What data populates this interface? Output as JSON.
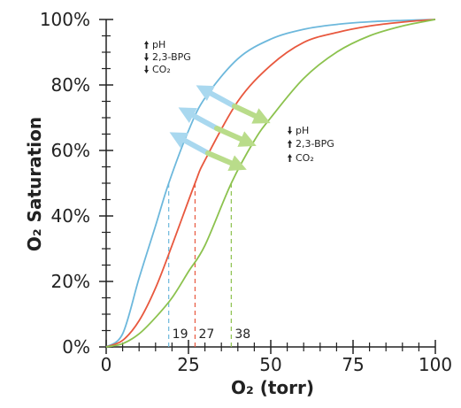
{
  "chart_data": {
    "type": "line",
    "xlabel": "O₂ (torr)",
    "ylabel": "O₂ Saturation",
    "xlim": [
      0,
      100
    ],
    "ylim": [
      0,
      100
    ],
    "x_ticks": [
      0,
      25,
      50,
      75,
      100
    ],
    "x_tick_labels": [
      "0",
      "25",
      "50",
      "75",
      "100"
    ],
    "y_ticks": [
      0,
      20,
      40,
      60,
      80,
      100
    ],
    "y_tick_labels": [
      "0%",
      "20%",
      "40%",
      "60%",
      "80%",
      "100%"
    ],
    "grid": false,
    "series": [
      {
        "color": "#6db8dc",
        "p50": 19,
        "x": [
          0,
          5,
          10,
          15,
          19,
          25,
          30,
          40,
          50,
          60,
          70,
          80,
          90,
          100
        ],
        "y": [
          0,
          4,
          21,
          37,
          50,
          66,
          76,
          88,
          94,
          97,
          98.5,
          99.3,
          99.7,
          100
        ]
      },
      {
        "color": "#e8583e",
        "p50": 27,
        "x": [
          0,
          5,
          10,
          15,
          20,
          27,
          30,
          40,
          50,
          60,
          70,
          80,
          90,
          100
        ],
        "y": [
          0,
          2,
          8,
          18,
          31,
          50,
          57,
          75,
          86,
          93,
          96,
          98,
          99.2,
          100
        ]
      },
      {
        "color": "#8cc24e",
        "p50": 38,
        "x": [
          0,
          5,
          10,
          15,
          20,
          25,
          30,
          38,
          45,
          50,
          60,
          70,
          80,
          90,
          100
        ],
        "y": [
          0,
          1,
          4,
          9,
          15,
          23,
          31,
          50,
          63,
          70,
          82,
          90,
          95,
          98,
          100
        ]
      }
    ],
    "p50_labels": [
      "19",
      "27",
      "38"
    ],
    "annotations": [
      {
        "lines": [
          "pH",
          "2,3-BPG",
          "CO₂"
        ],
        "arrows": [
          "up",
          "down",
          "down"
        ]
      },
      {
        "lines": [
          "pH",
          "2,3-BPG",
          "CO₂"
        ],
        "arrows": [
          "down",
          "up",
          "up"
        ]
      }
    ]
  }
}
